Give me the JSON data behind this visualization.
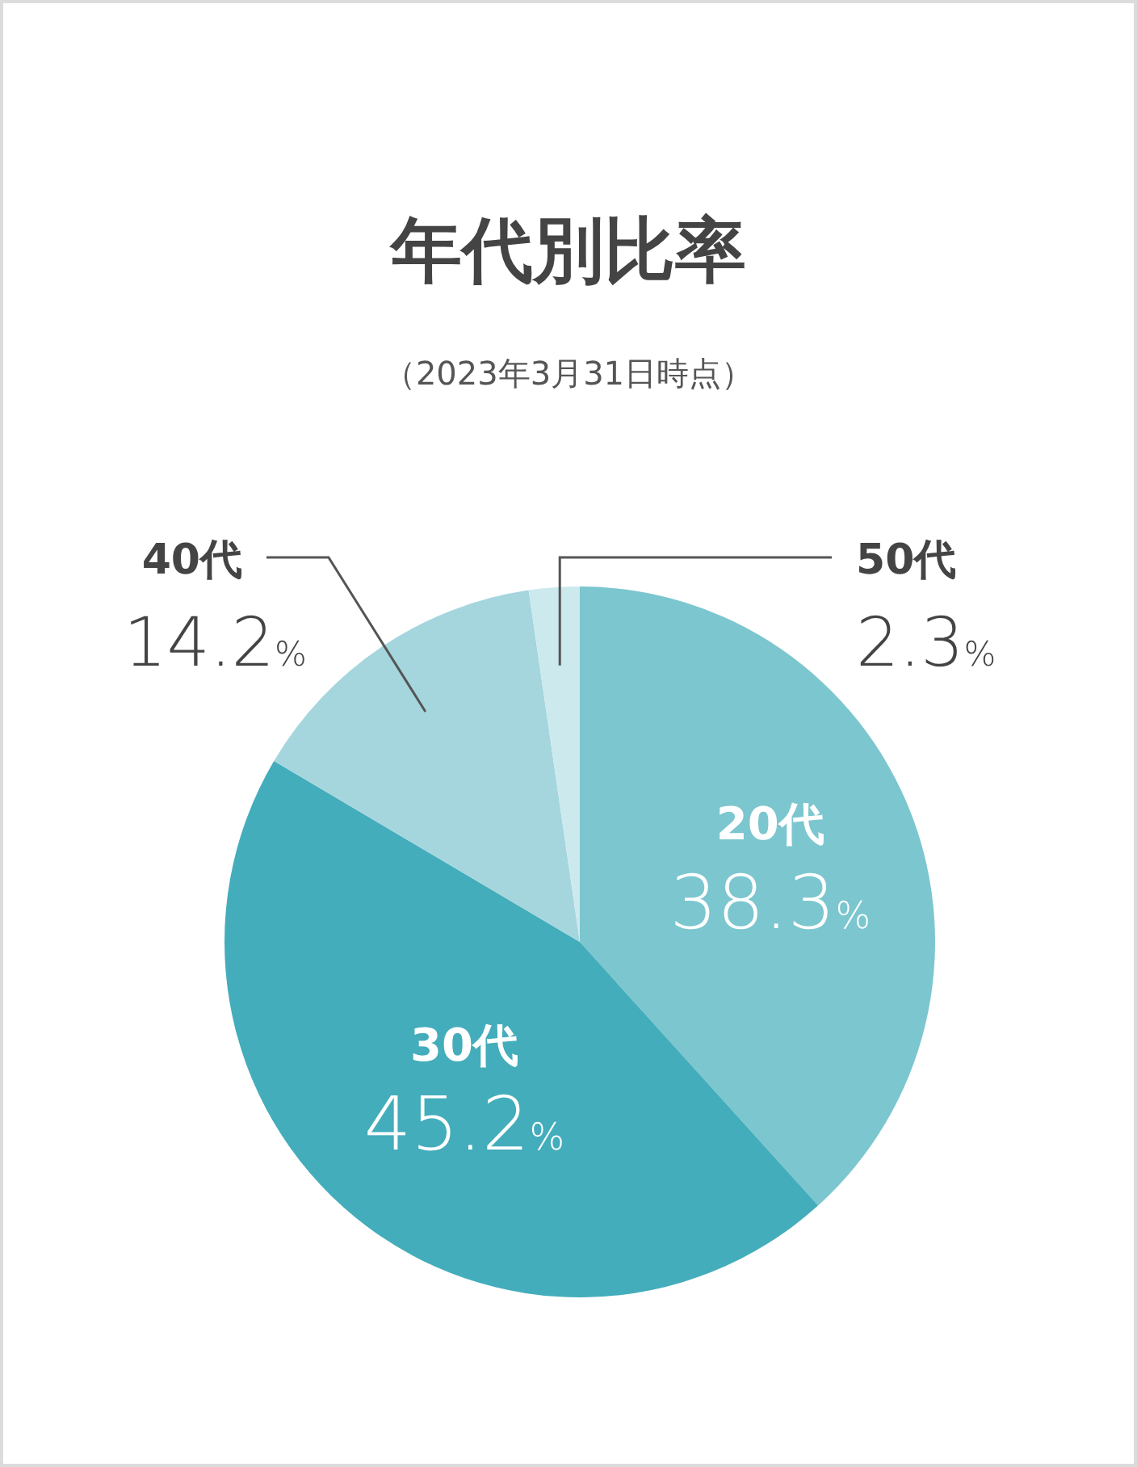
{
  "chart_data": {
    "type": "pie",
    "title": "年代別比率",
    "subtitle": "（2023年3月31日時点）",
    "categories": [
      "20代",
      "30代",
      "40代",
      "50代"
    ],
    "values": [
      38.3,
      45.2,
      14.2,
      2.3
    ],
    "value_labels": [
      "38.3%",
      "45.2%",
      "14.2%",
      "2.3%"
    ],
    "colors": [
      "#7cc6cf",
      "#43adbb",
      "#a5d6de",
      "#cce9ee"
    ]
  }
}
